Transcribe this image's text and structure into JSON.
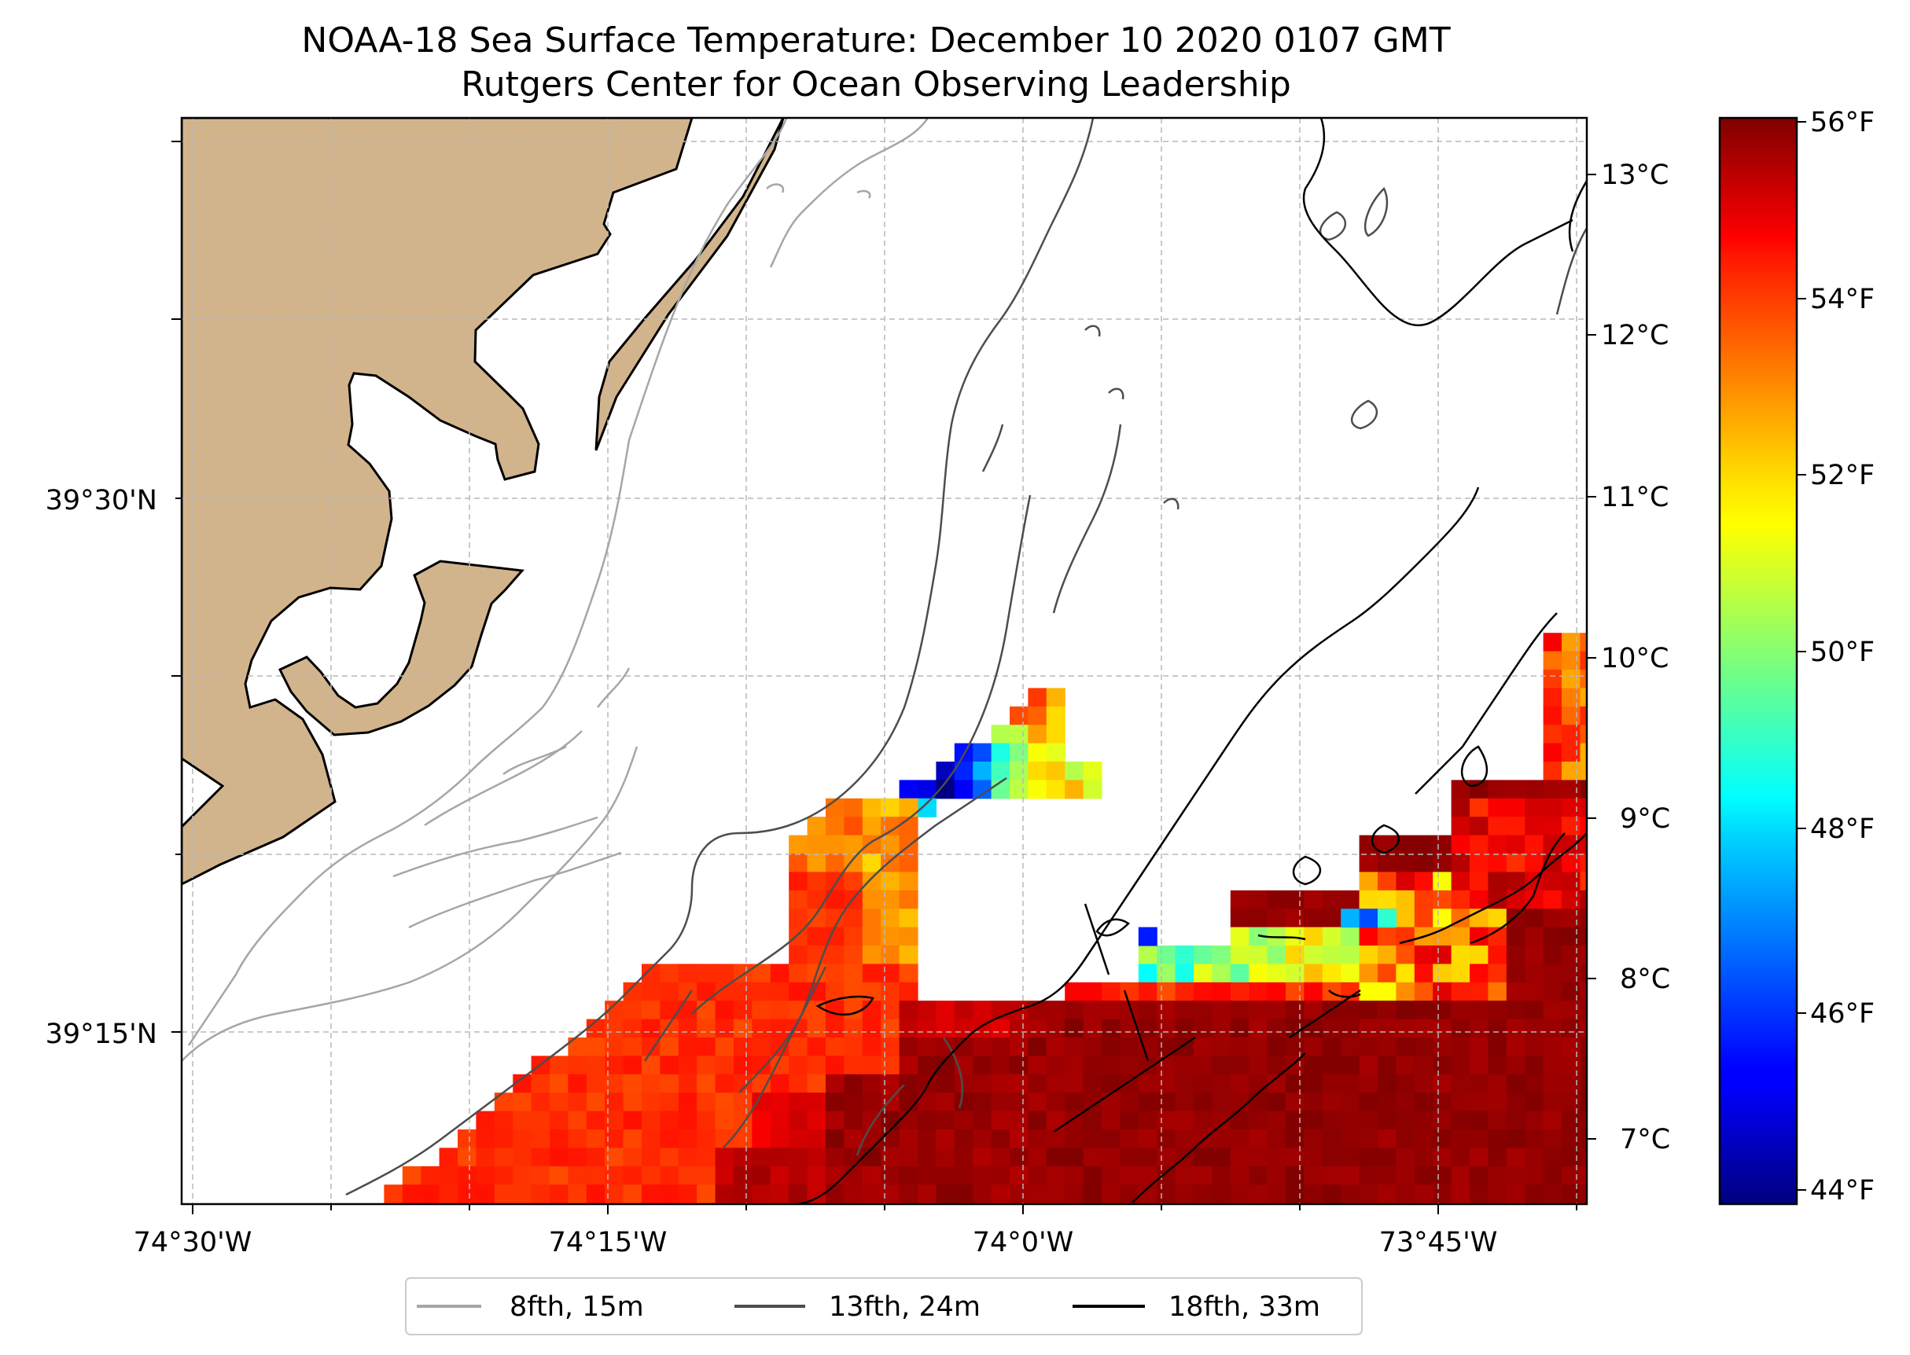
{
  "title": {
    "line1": "NOAA-18 Sea Surface Temperature: December 10 2020 0107 GMT",
    "line2": "Rutgers Center for Ocean Observing Leadership"
  },
  "map": {
    "lon_ticks": [
      "74°30'W",
      "74°15'W",
      "74°0'W",
      "73°45'W"
    ],
    "lat_ticks": [
      "39°30'N",
      "39°15'N"
    ],
    "colors": {
      "land": "#d2b48c",
      "ocean": "#ffffff",
      "grid": "#b8b8b8",
      "iso_8fth": "#a6a6a6",
      "iso_13fth": "#4d4d4d",
      "iso_18fth": "#000000"
    },
    "legend": [
      {
        "label": "8fth, 15m",
        "color": "#a6a6a6"
      },
      {
        "label": "13fth, 24m",
        "color": "#4d4d4d"
      },
      {
        "label": "18fth, 33m",
        "color": "#000000"
      }
    ]
  },
  "colorbar": {
    "celsius_ticks": [
      "13°C",
      "12°C",
      "11°C",
      "10°C",
      "9°C",
      "8°C",
      "7°C"
    ],
    "fahrenheit_ticks": [
      "56°F",
      "54°F",
      "52°F",
      "50°F",
      "48°F",
      "46°F",
      "44°F"
    ],
    "range_f": [
      43.8,
      56.1
    ],
    "colormap": "jet"
  }
}
